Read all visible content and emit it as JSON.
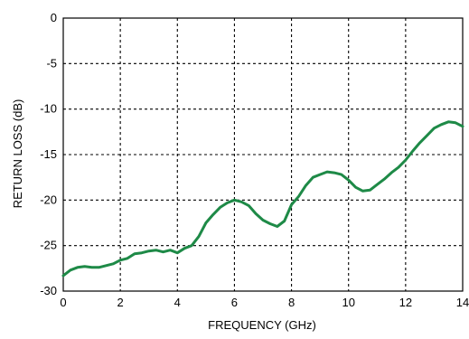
{
  "chart_data": {
    "type": "line",
    "title": "",
    "xlabel": "FREQUENCY (GHz)",
    "ylabel": "RETURN LOSS (dB)",
    "xlim": [
      0,
      14
    ],
    "ylim": [
      -30,
      0
    ],
    "x_ticks": [
      0,
      2,
      4,
      6,
      8,
      10,
      12,
      14
    ],
    "y_ticks": [
      0,
      -5,
      -10,
      -15,
      -20,
      -25,
      -30
    ],
    "x_tick_labels": [
      "0",
      "2",
      "4",
      "6",
      "8",
      "10",
      "12",
      "14"
    ],
    "y_tick_labels": [
      "0",
      "-5",
      "-10",
      "-15",
      "-20",
      "-25",
      "-30"
    ],
    "grid": true,
    "grid_style": "dashed",
    "line_color": "#1e8a47",
    "frame_color": "#000000",
    "series": [
      {
        "x": [
          0.0,
          0.25,
          0.5,
          0.75,
          1.0,
          1.25,
          1.5,
          1.75,
          2.0,
          2.25,
          2.5,
          2.75,
          3.0,
          3.25,
          3.5,
          3.75,
          4.0,
          4.25,
          4.5,
          4.75,
          5.0,
          5.25,
          5.5,
          5.75,
          6.0,
          6.25,
          6.5,
          6.75,
          7.0,
          7.25,
          7.5,
          7.75,
          8.0,
          8.25,
          8.5,
          8.75,
          9.0,
          9.25,
          9.5,
          9.75,
          10.0,
          10.25,
          10.5,
          10.75,
          11.0,
          11.25,
          11.5,
          11.75,
          12.0,
          12.25,
          12.5,
          12.75,
          13.0,
          13.25,
          13.5,
          13.75,
          14.0
        ],
        "y": [
          -28.3,
          -27.7,
          -27.4,
          -27.3,
          -27.4,
          -27.4,
          -27.2,
          -27.0,
          -26.6,
          -26.4,
          -25.9,
          -25.8,
          -25.6,
          -25.5,
          -25.7,
          -25.5,
          -25.8,
          -25.3,
          -25.0,
          -24.0,
          -22.5,
          -21.6,
          -20.8,
          -20.3,
          -20.0,
          -20.2,
          -20.6,
          -21.5,
          -22.2,
          -22.6,
          -22.9,
          -22.3,
          -20.5,
          -19.6,
          -18.4,
          -17.5,
          -17.2,
          -16.9,
          -17.0,
          -17.2,
          -17.8,
          -18.6,
          -19.0,
          -18.9,
          -18.3,
          -17.7,
          -17.0,
          -16.4,
          -15.6,
          -14.6,
          -13.7,
          -12.9,
          -12.1,
          -11.7,
          -11.4,
          -11.5,
          -11.9
        ]
      }
    ]
  }
}
